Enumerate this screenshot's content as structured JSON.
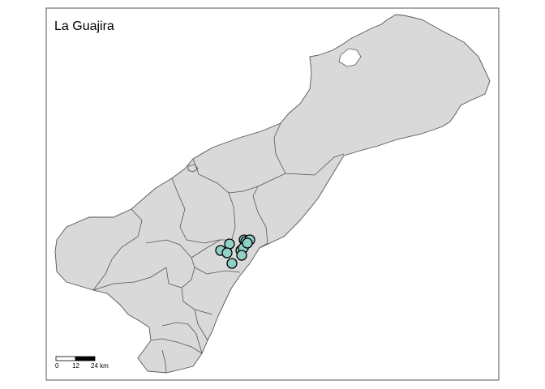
{
  "map": {
    "title": "La Guajira",
    "land_color": "#d9d9d9",
    "border_color": "#555555",
    "marker_color": "#8fd1c6",
    "marker_outline_color": "#000000",
    "marker_count": 12
  },
  "scale_bar": {
    "labels": [
      "0",
      "12",
      "24 km"
    ]
  }
}
